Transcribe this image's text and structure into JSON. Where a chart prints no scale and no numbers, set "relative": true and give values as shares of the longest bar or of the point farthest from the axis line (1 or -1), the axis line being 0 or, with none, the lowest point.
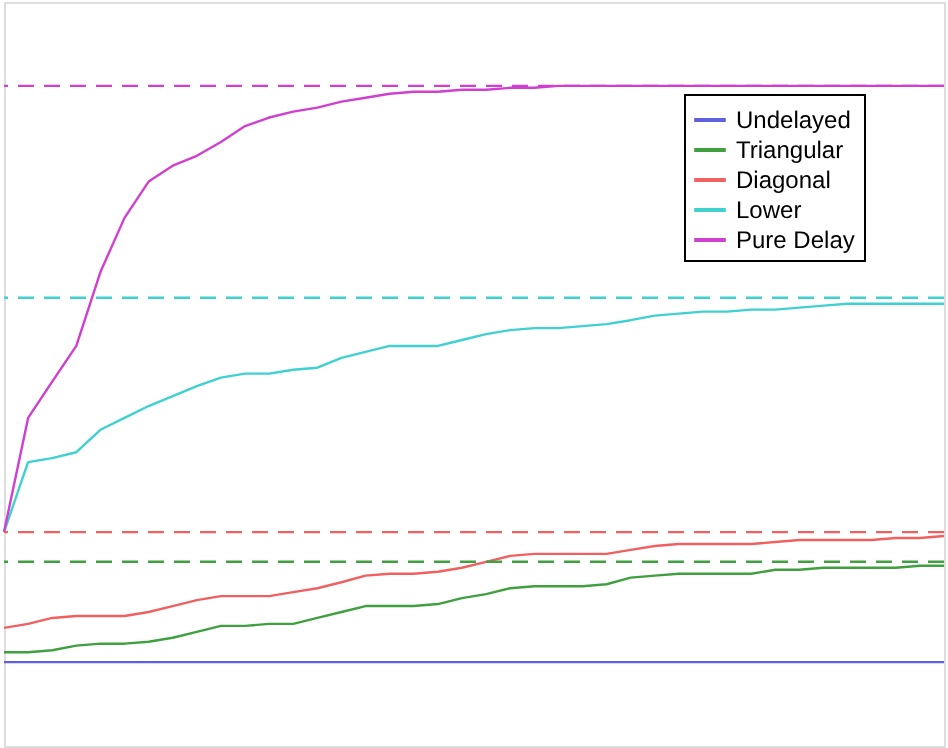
{
  "chart_data": {
    "type": "line",
    "relative": true,
    "legend": "top right",
    "grid": false,
    "marker": "none",
    "line_style": "solid",
    "categories": [
      null,
      null,
      null,
      null,
      null,
      null,
      null,
      null,
      null,
      null,
      null,
      null,
      null,
      null,
      null,
      null,
      null,
      null,
      null,
      null,
      null,
      null,
      null,
      null,
      null,
      null,
      null,
      null,
      null,
      null,
      null,
      null,
      null,
      null,
      null,
      null,
      null,
      null,
      null,
      null
    ],
    "series": [
      {
        "name": "Undelayed",
        "color": "#6060e0",
        "values": [
          0.127,
          0.127,
          0.127,
          0.127,
          0.127,
          0.127,
          0.127,
          0.127,
          0.127,
          0.127,
          0.127,
          0.127,
          0.127,
          0.127,
          0.127,
          0.127,
          0.127,
          0.127,
          0.127,
          0.127,
          0.127,
          0.127,
          0.127,
          0.127,
          0.127,
          0.127,
          0.127,
          0.127,
          0.127,
          0.127,
          0.127,
          0.127,
          0.127,
          0.127,
          0.127,
          0.127,
          0.127,
          0.127,
          0.127,
          0.127
        ]
      },
      {
        "name": "Triangular",
        "color": "#40a040",
        "values": [
          0.142,
          0.142,
          0.145,
          0.152,
          0.155,
          0.155,
          0.158,
          0.164,
          0.173,
          0.182,
          0.182,
          0.185,
          0.185,
          0.194,
          0.203,
          0.212,
          0.212,
          0.212,
          0.215,
          0.224,
          0.23,
          0.239,
          0.242,
          0.242,
          0.242,
          0.245,
          0.255,
          0.258,
          0.261,
          0.261,
          0.261,
          0.261,
          0.267,
          0.267,
          0.27,
          0.27,
          0.27,
          0.27,
          0.273,
          0.273
        ]
      },
      {
        "name": "Diagonal",
        "color": "#f06060",
        "values": [
          0.179,
          0.185,
          0.194,
          0.197,
          0.197,
          0.197,
          0.203,
          0.212,
          0.221,
          0.227,
          0.227,
          0.227,
          0.233,
          0.239,
          0.248,
          0.258,
          0.261,
          0.261,
          0.264,
          0.27,
          0.279,
          0.288,
          0.291,
          0.291,
          0.291,
          0.291,
          0.297,
          0.303,
          0.306,
          0.306,
          0.306,
          0.306,
          0.309,
          0.312,
          0.312,
          0.312,
          0.312,
          0.315,
          0.315,
          0.318
        ]
      },
      {
        "name": "Lower",
        "color": "#40d0d0",
        "values": [
          0.324,
          0.43,
          0.436,
          0.445,
          0.479,
          0.497,
          0.515,
          0.53,
          0.545,
          0.558,
          0.564,
          0.564,
          0.57,
          0.573,
          0.588,
          0.597,
          0.606,
          0.606,
          0.606,
          0.615,
          0.624,
          0.63,
          0.633,
          0.633,
          0.636,
          0.639,
          0.645,
          0.652,
          0.655,
          0.658,
          0.658,
          0.661,
          0.661,
          0.664,
          0.667,
          0.67,
          0.67,
          0.67,
          0.67,
          0.67
        ]
      },
      {
        "name": "Pure Delay",
        "color": "#d040d0",
        "values": [
          0.324,
          0.497,
          0.552,
          0.606,
          0.718,
          0.8,
          0.855,
          0.879,
          0.894,
          0.915,
          0.939,
          0.952,
          0.961,
          0.967,
          0.976,
          0.982,
          0.988,
          0.991,
          0.991,
          0.994,
          0.994,
          0.997,
          0.997,
          1.0,
          1.0,
          1.0,
          1.0,
          1.0,
          1.0,
          1.0,
          1.0,
          1.0,
          1.0,
          1.0,
          1.0,
          1.0,
          1.0,
          1.0,
          1.0,
          1.0
        ]
      }
    ],
    "ref_lines": [
      {
        "axis": "y",
        "value": 1.0,
        "color": "#d040d0",
        "line_style": "dashed"
      },
      {
        "axis": "y",
        "value": 0.679,
        "color": "#40d0d0",
        "line_style": "dashed"
      },
      {
        "axis": "y",
        "value": 0.324,
        "color": "#f06060",
        "line_style": "dashed"
      },
      {
        "axis": "y",
        "value": 0.279,
        "color": "#40a040",
        "line_style": "dashed"
      }
    ]
  }
}
